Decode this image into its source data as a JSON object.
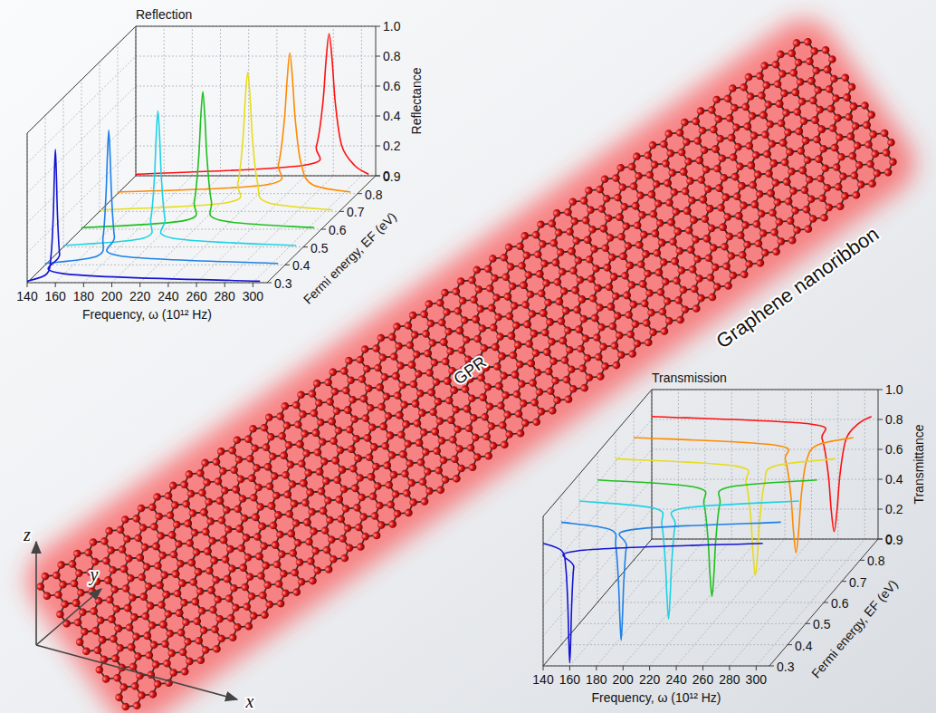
{
  "chart_data": [
    {
      "type": "waterfall",
      "title": "Reflection",
      "xlabel": "Frequency, ω (10¹² Hz)",
      "ylabel": "Reflectance",
      "zlabel": "Fermi energy, EF (eV)",
      "xlim": [
        140,
        310
      ],
      "xticks": [
        140,
        160,
        180,
        200,
        220,
        240,
        260,
        280,
        300
      ],
      "ylim": [
        0,
        1
      ],
      "yticks": [
        0,
        0.2,
        0.4,
        0.6,
        0.8,
        {
          "value": 1,
          "label": "1.0"
        }
      ],
      "zlim": [
        0.3,
        0.9
      ],
      "zticks": [
        0.3,
        0.4,
        0.5,
        0.6,
        0.7,
        0.8,
        0.9
      ],
      "grid": true,
      "series": [
        {
          "z": 0.3,
          "color": "#1414d2",
          "x": [
            140,
            154,
            157,
            158.5,
            159.25,
            160,
            160.75,
            161.5,
            163,
            166,
            305
          ],
          "values": [
            0.01,
            0.06,
            0.19,
            0.45,
            0.71,
            0.89,
            0.71,
            0.45,
            0.19,
            0.06,
            0.01
          ]
        },
        {
          "z": 0.4,
          "color": "#1e80e6",
          "x": [
            140,
            177,
            181,
            183,
            184,
            185,
            186,
            187,
            189,
            193,
            305
          ],
          "values": [
            0.01,
            0.06,
            0.19,
            0.46,
            0.72,
            0.9,
            0.72,
            0.46,
            0.19,
            0.06,
            0.01
          ]
        },
        {
          "z": 0.5,
          "color": "#1ed2e4",
          "x": [
            140,
            197,
            202,
            204.5,
            205.75,
            207,
            208.25,
            209.5,
            212,
            217,
            305
          ],
          "values": [
            0.01,
            0.06,
            0.19,
            0.46,
            0.73,
            0.91,
            0.73,
            0.46,
            0.19,
            0.06,
            0.01
          ]
        },
        {
          "z": 0.6,
          "color": "#1ec01e",
          "x": [
            140,
            214,
            220,
            223,
            224.5,
            226,
            227.5,
            229,
            232,
            238,
            305
          ],
          "values": [
            0.01,
            0.06,
            0.19,
            0.47,
            0.74,
            0.92,
            0.74,
            0.47,
            0.19,
            0.06,
            0.01
          ]
        },
        {
          "z": 0.7,
          "color": "#e6dc1e",
          "x": [
            140,
            231,
            238,
            241.5,
            243.25,
            245,
            246.75,
            248.5,
            252,
            259,
            305
          ],
          "values": [
            0.01,
            0.06,
            0.19,
            0.47,
            0.75,
            0.93,
            0.75,
            0.47,
            0.19,
            0.06,
            0.01
          ]
        },
        {
          "z": 0.8,
          "color": "#ff8a00",
          "x": [
            140,
            246,
            254,
            258,
            260,
            262,
            264,
            266,
            270,
            278,
            305
          ],
          "values": [
            0.01,
            0.06,
            0.2,
            0.48,
            0.75,
            0.94,
            0.75,
            0.48,
            0.2,
            0.06,
            0.01
          ]
        },
        {
          "z": 0.9,
          "color": "#ff1010",
          "x": [
            140,
            259,
            268,
            272.5,
            274.75,
            277,
            279.25,
            281.5,
            286,
            295,
            305
          ],
          "values": [
            0.01,
            0.07,
            0.2,
            0.48,
            0.76,
            0.95,
            0.76,
            0.48,
            0.2,
            0.07,
            0.01
          ]
        }
      ]
    },
    {
      "type": "waterfall",
      "title": "Transmission",
      "xlabel": "Frequency, ω (10¹² Hz)",
      "ylabel": "Transmittance",
      "zlabel": "Fermi energy, EF (eV)",
      "xlim": [
        140,
        310
      ],
      "xticks": [
        140,
        160,
        180,
        200,
        220,
        240,
        260,
        280,
        300
      ],
      "ylim": [
        0,
        1
      ],
      "yticks": [
        0,
        0.2,
        0.4,
        0.6,
        0.8,
        {
          "value": 1,
          "label": "1.0"
        }
      ],
      "zlim": [
        0.3,
        0.9
      ],
      "zticks": [
        0.3,
        0.4,
        0.5,
        0.6,
        0.7,
        0.8,
        0.9
      ],
      "grid": true,
      "series": [
        {
          "z": 0.3,
          "color": "#1414d2",
          "x": [
            140,
            154,
            157,
            158.5,
            159.25,
            160,
            160.75,
            161.5,
            163,
            166,
            305
          ],
          "values": [
            0.82,
            0.77,
            0.66,
            0.42,
            0.18,
            0.02,
            0.18,
            0.42,
            0.66,
            0.77,
            0.82
          ]
        },
        {
          "z": 0.4,
          "color": "#1e80e6",
          "x": [
            140,
            177,
            181,
            183,
            184,
            185,
            186,
            187,
            189,
            193,
            305
          ],
          "values": [
            0.82,
            0.77,
            0.66,
            0.42,
            0.19,
            0.03,
            0.19,
            0.42,
            0.66,
            0.77,
            0.82
          ]
        },
        {
          "z": 0.5,
          "color": "#1ed2e4",
          "x": [
            140,
            197,
            202,
            204.5,
            205.75,
            207,
            208.25,
            209.5,
            212,
            217,
            305
          ],
          "values": [
            0.82,
            0.77,
            0.66,
            0.42,
            0.19,
            0.03,
            0.19,
            0.42,
            0.66,
            0.77,
            0.82
          ]
        },
        {
          "z": 0.6,
          "color": "#1ec01e",
          "x": [
            140,
            214,
            220,
            223,
            224.5,
            226,
            227.5,
            229,
            232,
            238,
            305
          ],
          "values": [
            0.82,
            0.77,
            0.66,
            0.43,
            0.19,
            0.04,
            0.19,
            0.43,
            0.66,
            0.77,
            0.82
          ]
        },
        {
          "z": 0.7,
          "color": "#e6dc1e",
          "x": [
            140,
            231,
            238,
            241.5,
            243.25,
            245,
            246.75,
            248.5,
            252,
            259,
            305
          ],
          "values": [
            0.82,
            0.77,
            0.66,
            0.43,
            0.19,
            0.04,
            0.19,
            0.43,
            0.66,
            0.77,
            0.82
          ]
        },
        {
          "z": 0.8,
          "color": "#ff8a00",
          "x": [
            140,
            246,
            254,
            258,
            260,
            262,
            264,
            266,
            270,
            278,
            305
          ],
          "values": [
            0.82,
            0.77,
            0.67,
            0.44,
            0.2,
            0.05,
            0.2,
            0.44,
            0.67,
            0.77,
            0.82
          ]
        },
        {
          "z": 0.9,
          "color": "#ff1010",
          "x": [
            140,
            259,
            268,
            272.5,
            274.75,
            277,
            279.25,
            281.5,
            286,
            295,
            305
          ],
          "values": [
            0.82,
            0.77,
            0.67,
            0.44,
            0.2,
            0.05,
            0.2,
            0.44,
            0.67,
            0.77,
            0.82
          ]
        }
      ]
    }
  ],
  "diagram": {
    "ribbon_label": "Graphene nanoribbon",
    "center_label": "GPR",
    "axes": [
      "x",
      "y",
      "z"
    ]
  }
}
